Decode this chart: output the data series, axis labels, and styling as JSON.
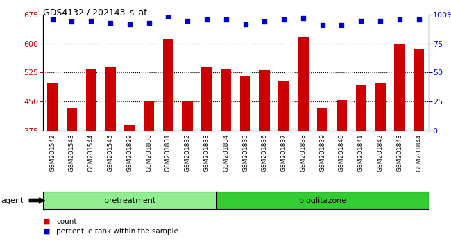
{
  "title": "GDS4132 / 202143_s_at",
  "samples": [
    "GSM201542",
    "GSM201543",
    "GSM201544",
    "GSM201545",
    "GSM201829",
    "GSM201830",
    "GSM201831",
    "GSM201832",
    "GSM201833",
    "GSM201834",
    "GSM201835",
    "GSM201836",
    "GSM201837",
    "GSM201838",
    "GSM201839",
    "GSM201840",
    "GSM201841",
    "GSM201842",
    "GSM201843",
    "GSM201844"
  ],
  "bar_values": [
    497,
    432,
    533,
    538,
    388,
    450,
    612,
    451,
    538,
    535,
    515,
    532,
    505,
    617,
    432,
    453,
    493,
    497,
    600,
    585
  ],
  "percentile_values": [
    96,
    94,
    95,
    93,
    92,
    93,
    99,
    95,
    96,
    96,
    92,
    94,
    96,
    97,
    91,
    91,
    95,
    95,
    96,
    96
  ],
  "bar_color": "#cc0000",
  "dot_color": "#0000cc",
  "ylim_left": [
    375,
    675
  ],
  "ylim_right": [
    0,
    100
  ],
  "yticks_left": [
    375,
    450,
    525,
    600,
    675
  ],
  "yticks_right": [
    0,
    25,
    50,
    75,
    100
  ],
  "grid_values": [
    450,
    525,
    600
  ],
  "pretreatment_count": 9,
  "pioglitazone_count": 11,
  "groups": [
    "pretreatment",
    "pioglitazone"
  ],
  "group_color_pre": "#90ee90",
  "group_color_pio": "#33cc33",
  "agent_label": "agent",
  "legend_items": [
    "count",
    "percentile rank within the sample"
  ],
  "legend_colors": [
    "#cc0000",
    "#0000cc"
  ],
  "xtick_bg_color": "#c8c8c8",
  "plot_bg_color": "#ffffff",
  "bar_bottom": 375
}
